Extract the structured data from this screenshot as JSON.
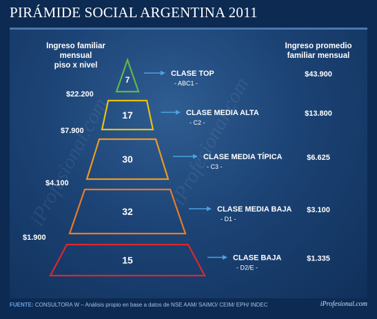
{
  "title": "PIRÁMIDE SOCIAL ARGENTINA 2011",
  "left_header": [
    "Ingreso familiar mensual",
    "piso x nivel"
  ],
  "right_header": [
    "Ingreso promedio",
    "familiar mensual"
  ],
  "footer": {
    "label": "FUENTE:",
    "text": "CONSULTORA W – Análisis propio en base a datos de NSE AAM/ SAIMO/ CEIM/ EPH/ INDEC"
  },
  "brand": "iProfesional.com",
  "watermark": "iProfesional.com",
  "colors": {
    "top": "#5fb84a",
    "media_alta": "#e8c214",
    "media_tipica": "#ef9a22",
    "media_baja": "#ee7b22",
    "baja": "#e0262a",
    "arrow": "#4aa3e2"
  },
  "chart_data": {
    "type": "pyramid",
    "title": "PIRÁMIDE SOCIAL ARGENTINA 2011",
    "levels": [
      {
        "name": "CLASE TOP",
        "code": "- ABC1 -",
        "value": "7",
        "avg_income": "$43.900",
        "color": "#5fb84a"
      },
      {
        "name": "CLASE MEDIA ALTA",
        "code": "- C2 -",
        "value": "17",
        "avg_income": "$13.800",
        "color": "#e8c214"
      },
      {
        "name": "CLASE MEDIA TÍPICA",
        "code": "- C3 -",
        "value": "30",
        "avg_income": "$6.625",
        "color": "#ef9a22"
      },
      {
        "name": "CLASE MEDIA BAJA",
        "code": "- D1 -",
        "value": "32",
        "avg_income": "$3.100",
        "color": "#ee7b22"
      },
      {
        "name": "CLASE BAJA",
        "code": "- D2/E -",
        "value": "15",
        "avg_income": "$1.335",
        "color": "#e0262a"
      }
    ],
    "thresholds": [
      "$22.200",
      "$7.900",
      "$4.100",
      "$1.900"
    ]
  }
}
